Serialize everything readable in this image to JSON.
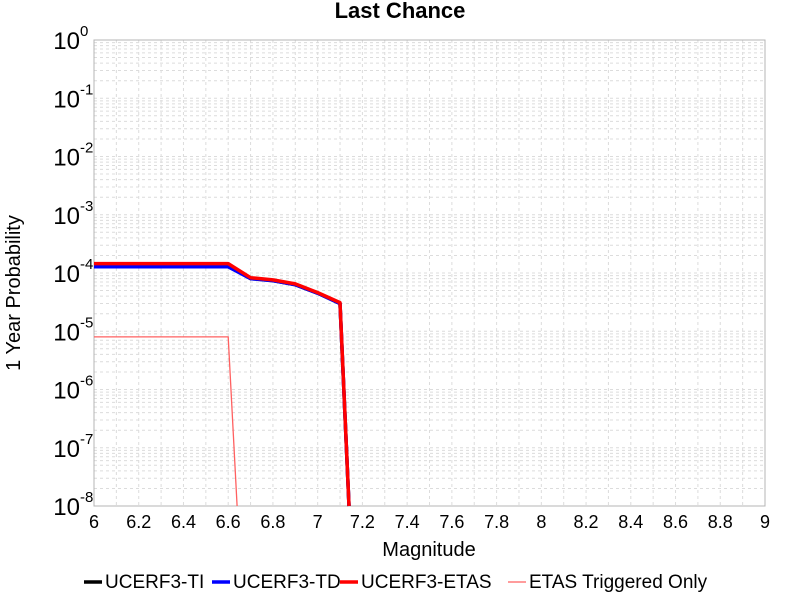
{
  "chart_data": {
    "type": "line",
    "title": "Last Chance",
    "xlabel": "Magnitude",
    "ylabel": "1 Year Probability",
    "xlim": [
      6,
      9
    ],
    "ylim": [
      1e-08,
      1
    ],
    "yscale": "log",
    "grid": true,
    "legend_position": "bottom",
    "x_ticks": [
      "6",
      "6.2",
      "6.4",
      "6.6",
      "6.8",
      "7",
      "7.2",
      "7.4",
      "7.6",
      "7.8",
      "8",
      "8.2",
      "8.4",
      "8.6",
      "8.8",
      "9"
    ],
    "y_ticks": [
      {
        "base": "10",
        "exp": "0"
      },
      {
        "base": "10",
        "exp": "-1"
      },
      {
        "base": "10",
        "exp": "-2"
      },
      {
        "base": "10",
        "exp": "-3"
      },
      {
        "base": "10",
        "exp": "-4"
      },
      {
        "base": "10",
        "exp": "-5"
      },
      {
        "base": "10",
        "exp": "-6"
      },
      {
        "base": "10",
        "exp": "-7"
      },
      {
        "base": "10",
        "exp": "-8"
      }
    ],
    "series": [
      {
        "name": "UCERF3-TI",
        "color": "#000000",
        "style": "thick",
        "x": [
          6.0,
          6.6,
          6.7,
          6.8,
          6.9,
          7.0,
          7.1,
          7.14
        ],
        "y": [
          0.00013,
          0.00013,
          8e-05,
          7.4e-05,
          6.3e-05,
          4.5e-05,
          3e-05,
          1e-08
        ]
      },
      {
        "name": "UCERF3-TD",
        "color": "#0000ff",
        "style": "thick",
        "x": [
          6.0,
          6.6,
          6.7,
          6.8,
          6.9,
          7.0,
          7.1,
          7.14
        ],
        "y": [
          0.000128,
          0.000128,
          8e-05,
          7.4e-05,
          6.3e-05,
          4.5e-05,
          3e-05,
          1e-08
        ]
      },
      {
        "name": "UCERF3-ETAS",
        "color": "#ff0000",
        "style": "thick",
        "x": [
          6.0,
          6.6,
          6.7,
          6.8,
          6.9,
          7.0,
          7.1,
          7.14
        ],
        "y": [
          0.000145,
          0.000145,
          8.3e-05,
          7.6e-05,
          6.5e-05,
          4.6e-05,
          3.1e-05,
          1e-08
        ]
      },
      {
        "name": "ETAS Triggered Only",
        "color": "#ff6060",
        "style": "thin",
        "x": [
          6.0,
          6.6,
          6.64
        ],
        "y": [
          8e-06,
          8e-06,
          1e-08
        ]
      }
    ]
  }
}
